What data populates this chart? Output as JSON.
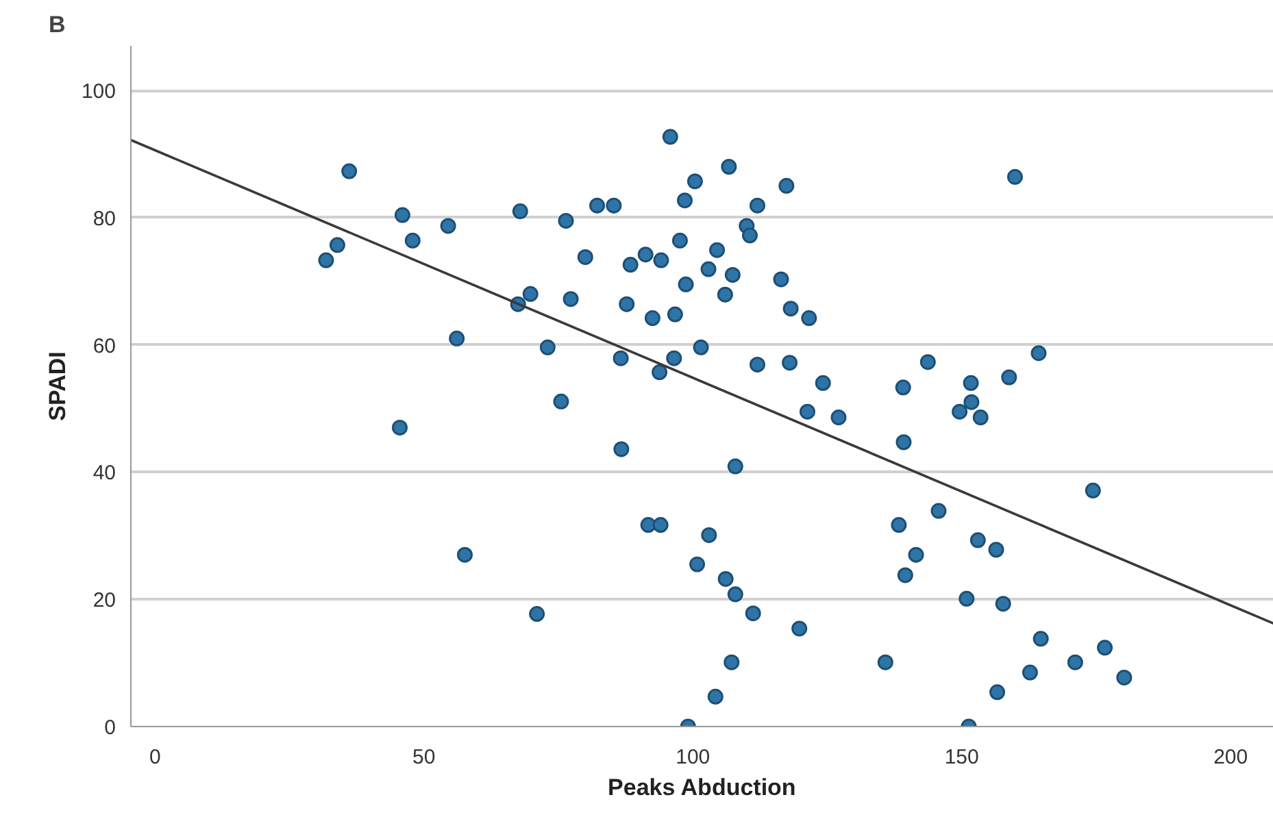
{
  "chart_data": {
    "type": "scatter",
    "title": "B",
    "xlabel": "Peaks Abduction",
    "ylabel": "SPADI",
    "xlim": [
      -4.5,
      208
    ],
    "ylim": [
      0,
      107
    ],
    "xticks": [
      0,
      50,
      100,
      150,
      200
    ],
    "yticks": [
      0,
      20,
      40,
      60,
      80,
      100
    ],
    "grid": "y",
    "marker": "circle",
    "series": [
      {
        "color": "#2f74a6",
        "x": [
          36.1,
          31.8,
          33.9,
          46.0,
          47.9,
          54.5,
          56.1,
          67.9,
          67.5,
          69.8,
          76.4,
          73.0,
          75.5,
          77.3,
          80.0,
          82.2,
          85.3,
          86.6,
          87.7,
          88.4,
          91.2,
          92.5,
          94.1,
          93.8,
          96.5,
          96.7,
          95.8,
          98.7,
          97.6,
          98.5,
          100.4,
          101.5,
          106.7,
          117.4,
          112.0,
          110.0,
          110.6,
          104.5,
          102.9,
          107.4,
          106.0,
          116.4,
          118.2,
          121.6,
          112.0,
          118.0,
          124.2,
          143.7,
          139.1,
          151.7,
          158.8,
          164.3,
          159.9,
          151.8,
          149.6,
          153.5,
          121.3,
          127.1,
          139.2,
          107.9,
          174.4,
          145.7,
          138.3,
          153.0,
          156.4,
          141.5,
          139.5,
          150.9,
          157.7,
          103.0,
          100.8,
          106.1,
          107.9,
          111.2,
          119.8,
          107.2,
          104.2,
          99.1,
          151.3,
          135.8,
          164.7,
          176.6,
          171.1,
          162.7,
          180.2,
          156.6,
          45.5,
          86.7,
          91.7,
          94.0,
          57.6,
          71.0
        ],
        "values": [
          87.3,
          73.3,
          75.7,
          80.4,
          76.4,
          78.7,
          61.0,
          81.0,
          66.4,
          68.0,
          79.5,
          59.6,
          51.1,
          67.2,
          73.8,
          81.9,
          81.9,
          57.9,
          66.4,
          72.6,
          74.2,
          64.2,
          73.3,
          55.7,
          57.9,
          64.8,
          92.7,
          69.5,
          76.4,
          82.7,
          85.7,
          59.6,
          88.0,
          85.0,
          81.9,
          78.7,
          77.2,
          74.9,
          71.9,
          71.0,
          67.9,
          70.3,
          65.7,
          64.2,
          56.9,
          57.2,
          54.0,
          57.3,
          53.3,
          54.0,
          54.9,
          58.7,
          86.4,
          51.0,
          49.5,
          48.6,
          49.5,
          48.6,
          44.7,
          40.9,
          37.1,
          33.9,
          31.7,
          29.3,
          27.8,
          27.0,
          23.8,
          20.1,
          19.3,
          30.1,
          25.5,
          23.2,
          20.8,
          17.8,
          15.4,
          10.1,
          4.7,
          0,
          0,
          10.1,
          13.8,
          12.4,
          10.1,
          8.5,
          7.7,
          5.4,
          47.0,
          43.6,
          31.7,
          31.7,
          27.0,
          17.7
        ]
      },
      {
        "type": "line",
        "color": "#3a3a3a",
        "marker": "none",
        "x": [
          -4.5,
          208
        ],
        "values": [
          92.2,
          16.2
        ]
      }
    ]
  }
}
